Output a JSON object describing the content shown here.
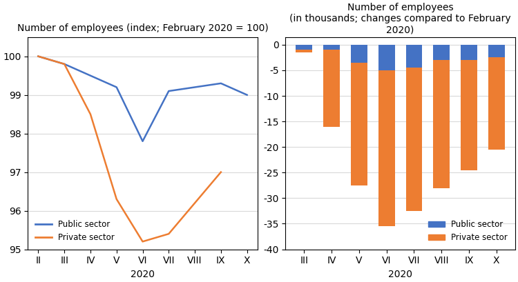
{
  "chart_data": [
    {
      "type": "line",
      "title": "Number of employees (index; February 2020 = 100)",
      "x_label": "2020",
      "categories": [
        "II",
        "III",
        "IV",
        "V",
        "VI",
        "VII",
        "VIII",
        "IX",
        "X"
      ],
      "series": [
        {
          "name": "Public sector",
          "color": "#4472C4",
          "values": [
            100.0,
            99.8,
            99.5,
            99.2,
            97.8,
            99.1,
            99.2,
            99.3,
            99.0
          ]
        },
        {
          "name": "Private sector",
          "color": "#ED7D31",
          "values": [
            100.0,
            99.8,
            98.5,
            96.3,
            95.2,
            95.4,
            96.2,
            97.0,
            null
          ]
        }
      ],
      "ylim": [
        95,
        100.5
      ],
      "yticks": [
        95,
        96,
        97,
        98,
        99,
        100
      ],
      "grid": true,
      "legend": "lower left"
    },
    {
      "type": "bar",
      "stacked": true,
      "title": "Number of employees",
      "subtitle": "(in thousands; changes compared to February 2020)",
      "x_label": "2020",
      "categories": [
        "III",
        "IV",
        "V",
        "VI",
        "VII",
        "VIII",
        "IX",
        "X"
      ],
      "series": [
        {
          "name": "Public sector",
          "color": "#4472C4",
          "values": [
            -1.0,
            -1.0,
            -3.5,
            -5.0,
            -4.5,
            -3.0,
            -3.0,
            -2.5
          ]
        },
        {
          "name": "Private sector",
          "color": "#ED7D31",
          "values": [
            -0.5,
            -15.0,
            -24.0,
            -30.5,
            -28.0,
            -25.0,
            -21.5,
            -18.0
          ]
        }
      ],
      "ylim": [
        -40,
        1.5
      ],
      "yticks": [
        0,
        -5,
        -10,
        -15,
        -20,
        -25,
        -30,
        -35,
        -40
      ],
      "grid": true,
      "legend": "lower right"
    }
  ]
}
